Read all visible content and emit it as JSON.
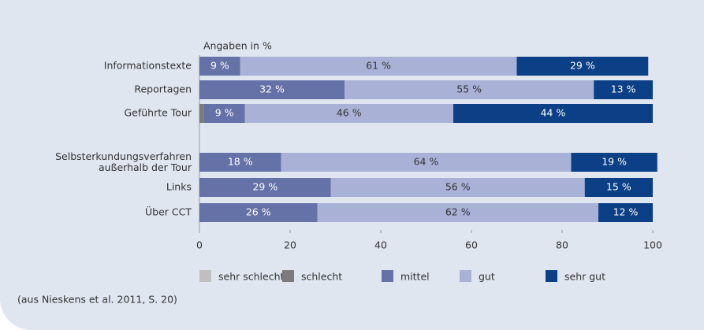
{
  "chart_data": {
    "type": "stacked-bar-horizontal",
    "subtitle": "Angaben in %",
    "categories": [
      "Informationstexte",
      "Reportagen",
      "Geführte Tour",
      "Selbsterkundungsverfahren\naußerhalb der Tour",
      "Links",
      "Über CCT"
    ],
    "series": [
      {
        "name": "sehr schlecht",
        "color": "#bfbfbf",
        "values": [
          0,
          0,
          0,
          0,
          0,
          0
        ]
      },
      {
        "name": "schlecht",
        "color": "#7b7b7b",
        "values": [
          0,
          0,
          1,
          0,
          0,
          0
        ]
      },
      {
        "name": "mittel",
        "color": "#6572a8",
        "values": [
          9,
          32,
          9,
          18,
          29,
          26
        ],
        "value_labels": [
          "9 %",
          "32 %",
          "9 %",
          "18 %",
          "29 %",
          "26 %"
        ],
        "label_color": "#ffffff"
      },
      {
        "name": "gut",
        "color": "#a9b2d6",
        "values": [
          61,
          55,
          46,
          64,
          56,
          62
        ],
        "value_labels": [
          "61 %",
          "55 %",
          "46 %",
          "64 %",
          "56 %",
          "62 %"
        ],
        "label_color": "#333333"
      },
      {
        "name": "sehr gut",
        "color": "#0b3f86",
        "values": [
          29,
          13,
          44,
          19,
          15,
          12
        ],
        "value_labels": [
          "29 %",
          "13 %",
          "44 %",
          "19 %",
          "15 %",
          "12 %"
        ],
        "label_color": "#ffffff"
      }
    ],
    "xlim": [
      0,
      100
    ],
    "xticks": [
      0,
      20,
      40,
      60,
      80,
      100
    ],
    "source": "(aus Nieskens et al. 2011, S. 20)"
  }
}
